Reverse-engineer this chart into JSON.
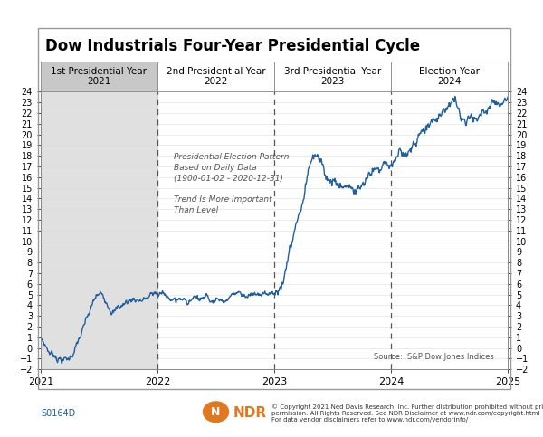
{
  "title": "Dow Industrials Four-Year Presidential Cycle",
  "section_labels": [
    {
      "label": "1st Presidential Year\n2021",
      "x_start": 2021.0,
      "x_end": 2022.0,
      "gray": true
    },
    {
      "label": "2nd Presidential Year\n2022",
      "x_start": 2022.0,
      "x_end": 2023.0,
      "gray": false
    },
    {
      "label": "3rd Presidential Year\n2023",
      "x_start": 2023.0,
      "x_end": 2024.0,
      "gray": false
    },
    {
      "label": "Election Year\n2024",
      "x_start": 2024.0,
      "x_end": 2025.0,
      "gray": false
    }
  ],
  "annotation_text": "Presidential Election Pattern\nBased on Daily Data\n(1900-01-02 - 2020-12-31)\n\nTrend Is More Important\nThan Level",
  "source_text": "Source:  S&P Dow Jones Indices",
  "footer_left": "S0164D",
  "footer_copyright": "© Copyright 2021 Ned Davis Research, Inc. Further distribution prohibited without prior\npermission. All Rights Reserved. See NDR Disclaimer at www.ndr.com/copyright.html\nFor data vendor disclaimers refer to www.ndr.com/vendorinfo/",
  "gray_shade_start": 2021.0,
  "gray_shade_end": 2022.0,
  "divider_lines": [
    2022.0,
    2023.0,
    2024.0
  ],
  "ylim": [
    -2,
    24
  ],
  "xlim": [
    2021.0,
    2025.0
  ],
  "yticks": [
    -2,
    -1,
    0,
    1,
    2,
    3,
    4,
    5,
    6,
    7,
    8,
    9,
    10,
    11,
    12,
    13,
    14,
    15,
    16,
    17,
    18,
    19,
    20,
    21,
    22,
    23,
    24
  ],
  "xticks": [
    2021,
    2022,
    2023,
    2024,
    2025
  ],
  "line_color": "#1F5F9E",
  "background_color": "#FFFFFF",
  "gray_color": "#C8C8C8",
  "header_font_size": 7.5,
  "title_font_size": 12,
  "ndr_color": "#E07820",
  "grid_color": "#DDDDDD",
  "divider_color": "#555555"
}
